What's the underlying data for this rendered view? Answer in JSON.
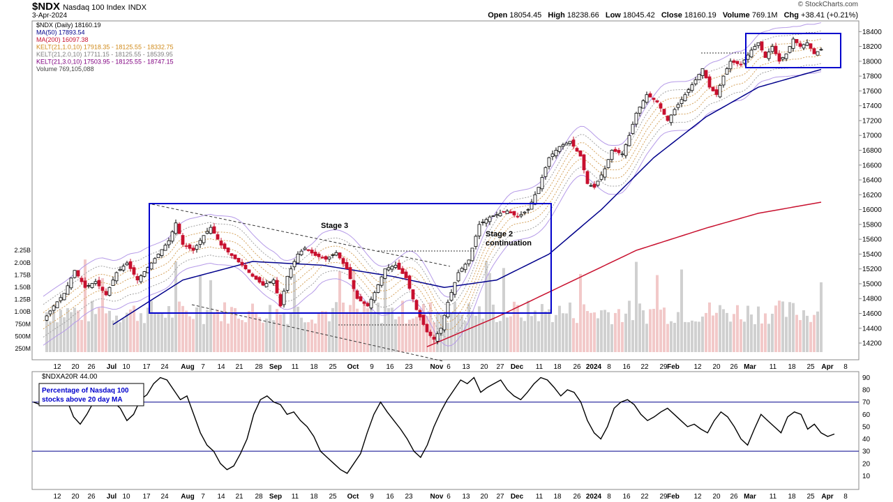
{
  "header": {
    "symbol": "$NDX",
    "name": "Nasdaq 100 Index",
    "exchange": "INDX",
    "date": "3-Apr-2024",
    "watermark": "© StockCharts.com",
    "open_label": "Open",
    "open": "18054.45",
    "high_label": "High",
    "high": "18238.66",
    "low_label": "Low",
    "low": "18045.42",
    "close_label": "Close",
    "close": "18160.19",
    "volume_label": "Volume",
    "volume": "769.1M",
    "chg_label": "Chg",
    "chg": "+38.41 (+0.21%)"
  },
  "legend": [
    {
      "text": "$NDX (Daily) 18160.19",
      "color": "#000000"
    },
    {
      "text": "MA(50) 17893.54",
      "color": "#00008b"
    },
    {
      "text": "MA(200) 16097.38",
      "color": "#c8102e"
    },
    {
      "text": "KELT(21,1.0,10) 17918.35 - 18125.55 - 18332.75",
      "color": "#d08a1a"
    },
    {
      "text": "KELT(21,2.0,10) 17711.15 - 18125.55 - 18539.95",
      "color": "#808080"
    },
    {
      "text": "KELT(21,3.0,10) 17503.95 - 18125.55 - 18747.15",
      "color": "#800080"
    },
    {
      "text": "Volume 769,105,088",
      "color": "#444444"
    }
  ],
  "annotations": {
    "stage3": "Stage 3",
    "stage2_line1": "Stage 2",
    "stage2_line2": "continuation",
    "breadth_box_line1": "Percentage of Nasdaq 100",
    "breadth_box_line2": "stocks above 20 day MA"
  },
  "lower_panel": {
    "legend": "$NDXA20R 44.00"
  },
  "colors": {
    "up": "#000000",
    "down": "#c8102e",
    "ma50": "#00008b",
    "ma200": "#c8102e",
    "box": "#0000cc",
    "kelt1": "#d4a15a",
    "kelt2": "#a0a0a0",
    "kelt3": "#b59ae8",
    "vol": "#d0d0d0",
    "vol_down": "#f2c9c9"
  },
  "chart_data": [
    {
      "type": "candlestick",
      "title": "$NDX Nasdaq 100 Index INDX",
      "y_price_ticks": [
        14200,
        14400,
        14600,
        14800,
        15000,
        15200,
        15400,
        15600,
        15800,
        16000,
        16200,
        16400,
        16600,
        16800,
        17000,
        17200,
        17400,
        17600,
        17800,
        18000,
        18200,
        18400
      ],
      "y_volume_ticks": [
        "250M",
        "500M",
        "750M",
        "1.00B",
        "1.25B",
        "1.50B",
        "1.75B",
        "2.00B",
        "2.25B"
      ],
      "x_tick_labels": [
        "12",
        "20",
        "26",
        "Jul",
        "10",
        "17",
        "24",
        "Aug",
        "7",
        "14",
        "21",
        "28",
        "Sep",
        "11",
        "18",
        "25",
        "Oct",
        "9",
        "16",
        "23",
        "Nov",
        "6",
        "13",
        "20",
        "27",
        "Dec",
        "11",
        "18",
        "26",
        "2024",
        "8",
        "16",
        "22",
        "29",
        "Feb",
        "12",
        "20",
        "26",
        "Mar",
        "11",
        "18",
        "25",
        "Apr",
        "8"
      ],
      "ylim": [
        14050,
        18450
      ],
      "close_path": [
        [
          0,
          14500
        ],
        [
          3,
          14700
        ],
        [
          6,
          14870
        ],
        [
          9,
          15180
        ],
        [
          12,
          14950
        ],
        [
          15,
          15030
        ],
        [
          18,
          14850
        ],
        [
          21,
          15150
        ],
        [
          24,
          15280
        ],
        [
          27,
          15050
        ],
        [
          30,
          15220
        ],
        [
          33,
          15400
        ],
        [
          36,
          15580
        ],
        [
          38,
          15820
        ],
        [
          40,
          15530
        ],
        [
          43,
          15450
        ],
        [
          46,
          15650
        ],
        [
          48,
          15760
        ],
        [
          51,
          15520
        ],
        [
          54,
          15380
        ],
        [
          57,
          15250
        ],
        [
          60,
          15100
        ],
        [
          63,
          14980
        ],
        [
          66,
          15050
        ],
        [
          68,
          14700
        ],
        [
          70,
          15100
        ],
        [
          73,
          15400
        ],
        [
          75,
          15480
        ],
        [
          78,
          15380
        ],
        [
          81,
          15330
        ],
        [
          84,
          15420
        ],
        [
          87,
          15200
        ],
        [
          90,
          14800
        ],
        [
          93,
          14700
        ],
        [
          95,
          14880
        ],
        [
          98,
          15200
        ],
        [
          101,
          15250
        ],
        [
          104,
          15080
        ],
        [
          107,
          14650
        ],
        [
          110,
          14350
        ],
        [
          112,
          14250
        ],
        [
          114,
          14400
        ],
        [
          116,
          14750
        ],
        [
          119,
          15150
        ],
        [
          122,
          15320
        ],
        [
          125,
          15800
        ],
        [
          128,
          15900
        ],
        [
          131,
          15950
        ],
        [
          133,
          15980
        ],
        [
          136,
          15900
        ],
        [
          139,
          16000
        ],
        [
          142,
          16300
        ],
        [
          145,
          16700
        ],
        [
          148,
          16850
        ],
        [
          151,
          16920
        ],
        [
          154,
          16720
        ],
        [
          156,
          16350
        ],
        [
          158,
          16300
        ],
        [
          161,
          16550
        ],
        [
          163,
          16800
        ],
        [
          166,
          16750
        ],
        [
          168,
          17000
        ],
        [
          170,
          17300
        ],
        [
          173,
          17550
        ],
        [
          176,
          17450
        ],
        [
          179,
          17200
        ],
        [
          181,
          17350
        ],
        [
          184,
          17550
        ],
        [
          187,
          17750
        ],
        [
          189,
          17900
        ],
        [
          191,
          17650
        ],
        [
          193,
          17550
        ],
        [
          195,
          17800
        ],
        [
          197,
          18000
        ],
        [
          200,
          17950
        ],
        [
          203,
          18150
        ],
        [
          205,
          18250
        ],
        [
          207,
          18050
        ],
        [
          209,
          18200
        ],
        [
          211,
          18000
        ],
        [
          213,
          18100
        ],
        [
          215,
          18300
        ],
        [
          217,
          18200
        ],
        [
          219,
          18250
        ],
        [
          221,
          18100
        ],
        [
          223,
          18160
        ]
      ],
      "ma50_path": [
        [
          20,
          14450
        ],
        [
          40,
          15050
        ],
        [
          60,
          15300
        ],
        [
          80,
          15250
        ],
        [
          100,
          15100
        ],
        [
          115,
          14950
        ],
        [
          130,
          15050
        ],
        [
          145,
          15400
        ],
        [
          160,
          16000
        ],
        [
          175,
          16700
        ],
        [
          190,
          17250
        ],
        [
          205,
          17650
        ],
        [
          223,
          17890
        ]
      ],
      "ma200_path": [
        [
          110,
          14150
        ],
        [
          130,
          14550
        ],
        [
          150,
          15000
        ],
        [
          170,
          15450
        ],
        [
          190,
          15750
        ],
        [
          205,
          15950
        ],
        [
          223,
          16100
        ]
      ]
    },
    {
      "type": "line",
      "title": "$NDXA20R",
      "ylim": [
        0,
        92
      ],
      "y_ticks": [
        10,
        20,
        30,
        40,
        50,
        60,
        70,
        80,
        90
      ],
      "values": [
        70,
        68,
        80,
        82,
        85,
        72,
        58,
        52,
        60,
        70,
        75,
        78,
        70,
        65,
        55,
        60,
        72,
        76,
        85,
        90,
        88,
        80,
        72,
        75,
        60,
        45,
        35,
        30,
        20,
        15,
        18,
        28,
        40,
        60,
        72,
        75,
        70,
        68,
        60,
        62,
        55,
        50,
        42,
        30,
        25,
        20,
        15,
        12,
        20,
        28,
        45,
        60,
        70,
        62,
        55,
        48,
        40,
        30,
        25,
        35,
        50,
        62,
        72,
        80,
        88,
        85,
        90,
        78,
        82,
        85,
        88,
        80,
        75,
        72,
        78,
        85,
        90,
        88,
        82,
        75,
        80,
        78,
        70,
        55,
        45,
        40,
        50,
        65,
        70,
        72,
        68,
        60,
        55,
        58,
        62,
        65,
        60,
        55,
        50,
        52,
        48,
        45,
        55,
        62,
        58,
        50,
        40,
        35,
        48,
        60,
        55,
        50,
        45,
        58,
        62,
        60,
        48,
        52,
        45,
        42,
        44
      ]
    }
  ]
}
